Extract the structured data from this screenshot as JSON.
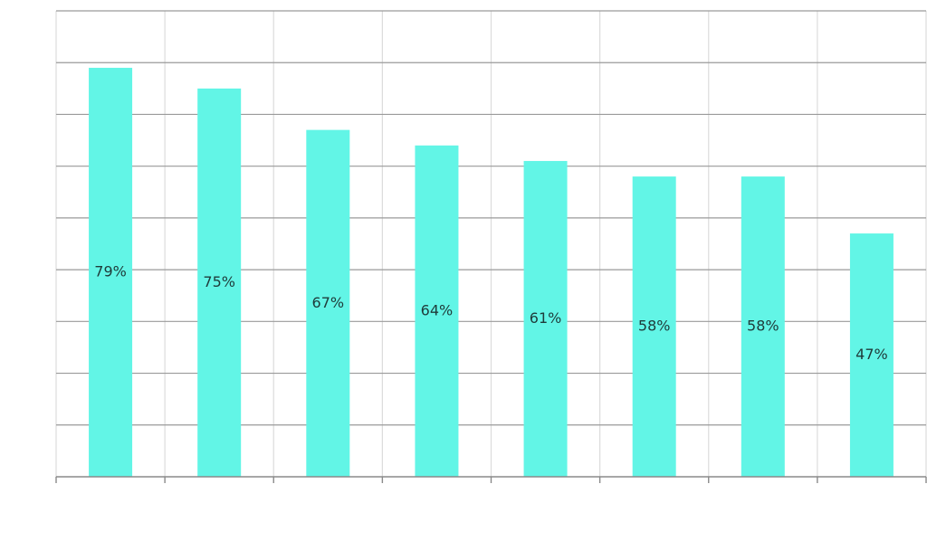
{
  "chart_data": {
    "type": "bar",
    "categories": [
      "",
      "",
      "",
      "",
      "",
      "",
      "",
      ""
    ],
    "values": [
      79,
      75,
      67,
      64,
      61,
      58,
      58,
      47
    ],
    "data_labels": [
      "79%",
      "75%",
      "67%",
      "64%",
      "61%",
      "58%",
      "58%",
      "47%"
    ],
    "ylim": [
      0,
      90
    ],
    "y_step": 10,
    "grid": true,
    "legend": "none"
  },
  "colors": {
    "bar": "#62f5e6",
    "label": "#1f3b3a"
  }
}
